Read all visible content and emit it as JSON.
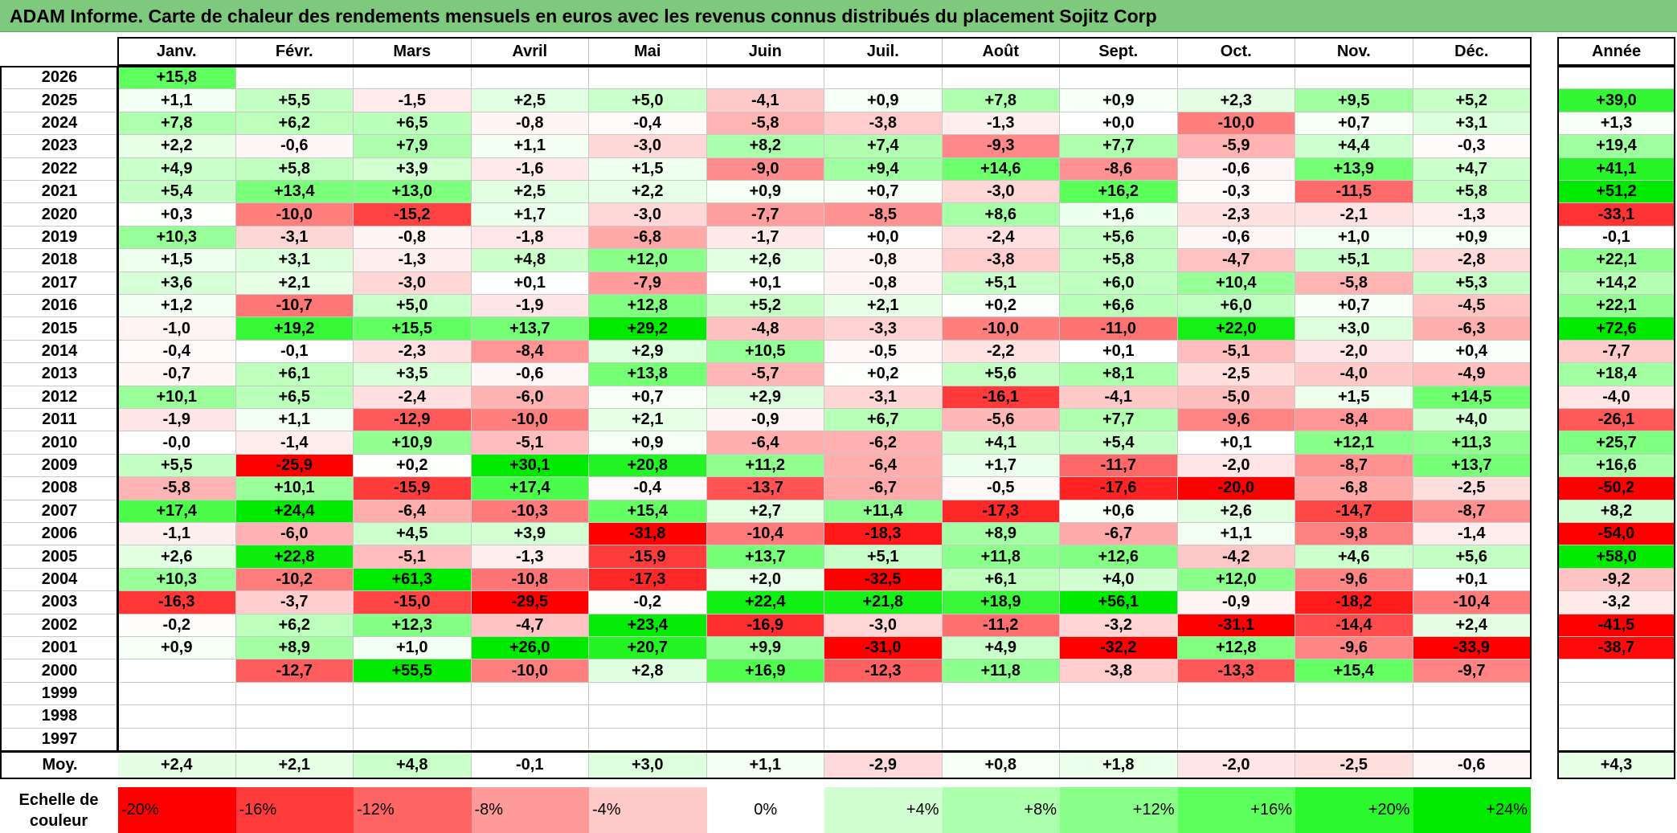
{
  "title": "ADAM Informe. Carte de chaleur des rendements mensuels en euros avec les revenus connus distribués du placement Sojitz Corp",
  "chart_data": {
    "type": "heatmap",
    "title": "ADAM Informe. Carte de chaleur des rendements mensuels en euros avec les revenus connus distribués du placement Sojitz Corp",
    "columns": [
      "Janv.",
      "Févr.",
      "Mars",
      "Avril",
      "Mai",
      "Juin",
      "Juil.",
      "Août",
      "Sept.",
      "Oct.",
      "Nov.",
      "Déc."
    ],
    "year_column_label": "Année",
    "rows": [
      {
        "year": "2026",
        "values": [
          "+15,8",
          "",
          "",
          "",
          "",
          "",
          "",
          "",
          "",
          "",
          "",
          ""
        ],
        "annual": ""
      },
      {
        "year": "2025",
        "values": [
          "+1,1",
          "+5,5",
          "-1,5",
          "+2,5",
          "+5,0",
          "-4,1",
          "+0,9",
          "+7,8",
          "+0,9",
          "+2,3",
          "+9,5",
          "+5,2"
        ],
        "annual": "+39,0"
      },
      {
        "year": "2024",
        "values": [
          "+7,8",
          "+6,2",
          "+6,5",
          "-0,8",
          "-0,4",
          "-5,8",
          "-3,8",
          "-1,3",
          "+0,0",
          "-10,0",
          "+0,7",
          "+3,1"
        ],
        "annual": "+1,3"
      },
      {
        "year": "2023",
        "values": [
          "+2,2",
          "-0,6",
          "+7,9",
          "+1,1",
          "-3,0",
          "+8,2",
          "+7,4",
          "-9,3",
          "+7,7",
          "-5,9",
          "+4,4",
          "-0,3"
        ],
        "annual": "+19,4"
      },
      {
        "year": "2022",
        "values": [
          "+4,9",
          "+5,8",
          "+3,9",
          "-1,6",
          "+1,5",
          "-9,0",
          "+9,4",
          "+14,6",
          "-8,6",
          "-0,6",
          "+13,9",
          "+4,7"
        ],
        "annual": "+41,1"
      },
      {
        "year": "2021",
        "values": [
          "+5,4",
          "+13,4",
          "+13,0",
          "+2,5",
          "+2,2",
          "+0,9",
          "+0,7",
          "-3,0",
          "+16,2",
          "-0,3",
          "-11,5",
          "+5,8"
        ],
        "annual": "+51,2"
      },
      {
        "year": "2020",
        "values": [
          "+0,3",
          "-10,0",
          "-15,2",
          "+1,7",
          "-3,0",
          "-7,7",
          "-8,5",
          "+8,6",
          "+1,6",
          "-2,3",
          "-2,1",
          "-1,3"
        ],
        "annual": "-33,1"
      },
      {
        "year": "2019",
        "values": [
          "+10,3",
          "-3,1",
          "-0,8",
          "-1,8",
          "-6,8",
          "-1,7",
          "+0,0",
          "-2,4",
          "+5,6",
          "-0,6",
          "+1,0",
          "+0,9"
        ],
        "annual": "-0,1"
      },
      {
        "year": "2018",
        "values": [
          "+1,5",
          "+3,1",
          "-1,3",
          "+4,8",
          "+12,0",
          "+2,6",
          "-0,8",
          "-3,8",
          "+5,8",
          "-4,7",
          "+5,1",
          "-2,8"
        ],
        "annual": "+22,1"
      },
      {
        "year": "2017",
        "values": [
          "+3,6",
          "+2,1",
          "-3,0",
          "+0,1",
          "-7,9",
          "+0,1",
          "-0,8",
          "+5,1",
          "+6,0",
          "+10,4",
          "-5,8",
          "+5,3"
        ],
        "annual": "+14,2"
      },
      {
        "year": "2016",
        "values": [
          "+1,2",
          "-10,7",
          "+5,0",
          "-1,9",
          "+12,8",
          "+5,2",
          "+2,1",
          "+0,2",
          "+6,6",
          "+6,0",
          "+0,7",
          "-4,5"
        ],
        "annual": "+22,1"
      },
      {
        "year": "2015",
        "values": [
          "-1,0",
          "+19,2",
          "+15,5",
          "+13,7",
          "+29,2",
          "-4,8",
          "-3,3",
          "-10,0",
          "-11,0",
          "+22,0",
          "+3,0",
          "-6,3"
        ],
        "annual": "+72,6"
      },
      {
        "year": "2014",
        "values": [
          "-0,4",
          "-0,1",
          "-2,3",
          "-8,4",
          "+2,9",
          "+10,5",
          "-0,5",
          "-2,2",
          "+0,1",
          "-5,1",
          "-2,0",
          "+0,4"
        ],
        "annual": "-7,7"
      },
      {
        "year": "2013",
        "values": [
          "-0,7",
          "+6,1",
          "+3,5",
          "-0,6",
          "+13,8",
          "-5,7",
          "+0,2",
          "+5,6",
          "+8,1",
          "-2,5",
          "-4,0",
          "-4,9"
        ],
        "annual": "+18,4"
      },
      {
        "year": "2012",
        "values": [
          "+10,1",
          "+6,5",
          "-2,4",
          "-6,0",
          "+0,7",
          "+2,9",
          "-3,1",
          "-16,1",
          "-4,1",
          "-5,0",
          "+1,5",
          "+14,5"
        ],
        "annual": "-4,0"
      },
      {
        "year": "2011",
        "values": [
          "-1,9",
          "+1,1",
          "-12,9",
          "-10,0",
          "+2,1",
          "-0,9",
          "+6,7",
          "-5,6",
          "+7,7",
          "-9,6",
          "-8,4",
          "+4,0"
        ],
        "annual": "-26,1"
      },
      {
        "year": "2010",
        "values": [
          "-0,0",
          "-1,4",
          "+10,9",
          "-5,1",
          "+0,9",
          "-6,4",
          "-6,2",
          "+4,1",
          "+5,4",
          "+0,1",
          "+12,1",
          "+11,3"
        ],
        "annual": "+25,7"
      },
      {
        "year": "2009",
        "values": [
          "+5,5",
          "-25,9",
          "+0,2",
          "+30,1",
          "+20,8",
          "+11,2",
          "-6,4",
          "+1,7",
          "-11,7",
          "-2,0",
          "-8,7",
          "+13,7"
        ],
        "annual": "+16,6"
      },
      {
        "year": "2008",
        "values": [
          "-5,8",
          "+10,1",
          "-15,9",
          "+17,4",
          "-0,4",
          "-13,7",
          "-6,7",
          "-0,5",
          "-17,6",
          "-20,0",
          "-6,8",
          "-2,5"
        ],
        "annual": "-50,2"
      },
      {
        "year": "2007",
        "values": [
          "+17,4",
          "+24,4",
          "-6,4",
          "-10,3",
          "+15,4",
          "+2,7",
          "+11,4",
          "-17,3",
          "+0,6",
          "+2,6",
          "-14,7",
          "-8,7"
        ],
        "annual": "+8,2"
      },
      {
        "year": "2006",
        "values": [
          "-1,1",
          "-6,0",
          "+4,5",
          "+3,9",
          "-31,8",
          "-10,4",
          "-18,3",
          "+8,9",
          "-6,7",
          "+1,1",
          "-9,8",
          "-1,4"
        ],
        "annual": "-54,0"
      },
      {
        "year": "2005",
        "values": [
          "+2,6",
          "+22,8",
          "-5,1",
          "-1,3",
          "-15,9",
          "+13,7",
          "+5,1",
          "+11,8",
          "+12,6",
          "-4,2",
          "+4,6",
          "+5,6"
        ],
        "annual": "+58,0"
      },
      {
        "year": "2004",
        "values": [
          "+10,3",
          "-10,2",
          "+61,3",
          "-10,8",
          "-17,3",
          "+2,0",
          "-32,5",
          "+6,1",
          "+4,0",
          "+12,0",
          "-9,6",
          "+0,1"
        ],
        "annual": "-9,2"
      },
      {
        "year": "2003",
        "values": [
          "-16,3",
          "-3,7",
          "-15,0",
          "-29,5",
          "-0,2",
          "+22,4",
          "+21,8",
          "+18,9",
          "+56,1",
          "-0,9",
          "-18,2",
          "-10,4"
        ],
        "annual": "-3,2"
      },
      {
        "year": "2002",
        "values": [
          "-0,2",
          "+6,2",
          "+12,3",
          "-4,7",
          "+23,4",
          "-16,9",
          "-3,0",
          "-11,2",
          "-3,2",
          "-31,1",
          "-14,4",
          "+2,4"
        ],
        "annual": "-41,5"
      },
      {
        "year": "2001",
        "values": [
          "+0,9",
          "+8,9",
          "+1,0",
          "+26,0",
          "+20,7",
          "+9,9",
          "-31,0",
          "+4,9",
          "-32,2",
          "+12,8",
          "-9,6",
          "-33,9"
        ],
        "annual": "-38,7"
      },
      {
        "year": "2000",
        "values": [
          "",
          "-12,7",
          "+55,5",
          "-10,0",
          "+2,8",
          "+16,9",
          "-12,3",
          "+11,8",
          "-3,8",
          "-13,3",
          "+15,4",
          "-9,7"
        ],
        "annual": ""
      },
      {
        "year": "1999",
        "values": [
          "",
          "",
          "",
          "",
          "",
          "",
          "",
          "",
          "",
          "",
          "",
          ""
        ],
        "annual": ""
      },
      {
        "year": "1998",
        "values": [
          "",
          "",
          "",
          "",
          "",
          "",
          "",
          "",
          "",
          "",
          "",
          ""
        ],
        "annual": ""
      },
      {
        "year": "1997",
        "values": [
          "",
          "",
          "",
          "",
          "",
          "",
          "",
          "",
          "",
          "",
          "",
          ""
        ],
        "annual": ""
      }
    ],
    "average": {
      "label": "Moy.",
      "values": [
        "+2,4",
        "+2,1",
        "+4,8",
        "-0,1",
        "+3,0",
        "+1,1",
        "-2,9",
        "+0,8",
        "+1,8",
        "-2,0",
        "-2,5",
        "-0,6"
      ],
      "annual": "+4,3"
    },
    "color_scale": {
      "label": "Echelle de couleur",
      "stops": [
        "-20%",
        "-16%",
        "-12%",
        "-8%",
        "-4%",
        "0%",
        "+4%",
        "+8%",
        "+12%",
        "+16%",
        "+20%",
        "+24%"
      ],
      "stop_values": [
        -20,
        -16,
        -12,
        -8,
        -4,
        0,
        4,
        8,
        12,
        16,
        20,
        24
      ],
      "colors": [
        "#ff0000",
        "#ff3b3b",
        "#ff6464",
        "#ff9a9a",
        "#ffcaca",
        "#ffffff",
        "#d2ffd2",
        "#acffac",
        "#89ff89",
        "#5cff5c",
        "#2cf62c",
        "#00ea00"
      ]
    }
  }
}
